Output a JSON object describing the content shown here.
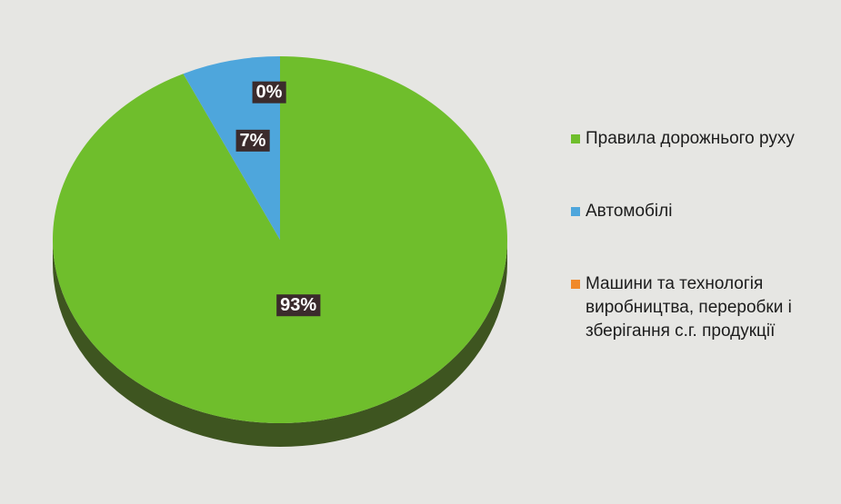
{
  "chart_data": {
    "type": "pie",
    "categories": [
      "Правила дорожнього руху",
      "Автомобілі",
      "Машини та технологія виробництва, переробки і зберігання с.г. продукції"
    ],
    "values": [
      93,
      7,
      0
    ],
    "value_labels": [
      "93%",
      "7%",
      "0%"
    ],
    "colors": [
      "#6fbe2c",
      "#4ea6dc",
      "#f0892a"
    ],
    "legend": "right"
  }
}
